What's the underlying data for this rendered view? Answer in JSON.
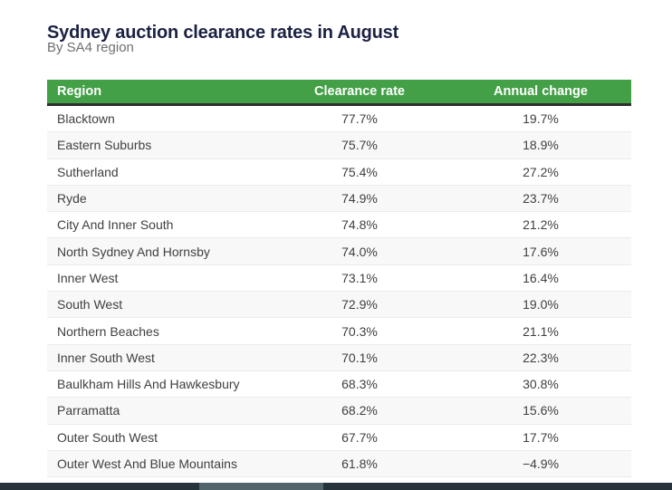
{
  "page": {
    "title": "Sydney auction clearance rates in August",
    "subtitle": "By SA4 region"
  },
  "table": {
    "columns": [
      {
        "key": "region",
        "label": "Region",
        "align": "left"
      },
      {
        "key": "clearance_rate",
        "label": "Clearance rate",
        "align": "center"
      },
      {
        "key": "annual_change",
        "label": "Annual change",
        "align": "center"
      }
    ],
    "rows": [
      {
        "region": "Blacktown",
        "clearance_rate": "77.7%",
        "annual_change": "19.7%"
      },
      {
        "region": "Eastern Suburbs",
        "clearance_rate": "75.7%",
        "annual_change": "18.9%"
      },
      {
        "region": "Sutherland",
        "clearance_rate": "75.4%",
        "annual_change": "27.2%"
      },
      {
        "region": "Ryde",
        "clearance_rate": "74.9%",
        "annual_change": "23.7%"
      },
      {
        "region": "City And Inner South",
        "clearance_rate": "74.8%",
        "annual_change": "21.2%"
      },
      {
        "region": "North Sydney And Hornsby",
        "clearance_rate": "74.0%",
        "annual_change": "17.6%"
      },
      {
        "region": "Inner West",
        "clearance_rate": "73.1%",
        "annual_change": "16.4%"
      },
      {
        "region": "South West",
        "clearance_rate": "72.9%",
        "annual_change": "19.0%"
      },
      {
        "region": "Northern Beaches",
        "clearance_rate": "70.3%",
        "annual_change": "21.1%"
      },
      {
        "region": "Inner South West",
        "clearance_rate": "70.1%",
        "annual_change": "22.3%"
      },
      {
        "region": "Baulkham Hills And Hawkesbury",
        "clearance_rate": "68.3%",
        "annual_change": "30.8%"
      },
      {
        "region": "Parramatta",
        "clearance_rate": "68.2%",
        "annual_change": "15.6%"
      },
      {
        "region": "Outer South West",
        "clearance_rate": "67.7%",
        "annual_change": "17.7%"
      },
      {
        "region": "Outer West And Blue Mountains",
        "clearance_rate": "61.8%",
        "annual_change": "−4.9%"
      }
    ]
  },
  "colors": {
    "header_bg": "#43a047",
    "header_text": "#ffffff",
    "header_border": "#2e2e2e",
    "title_text": "#1b2142",
    "subtitle_text": "#6f6f6f",
    "row_alt_bg": "#f8f8f8",
    "scrollbar_track": "#26333a",
    "scrollbar_thumb": "#52656c"
  }
}
